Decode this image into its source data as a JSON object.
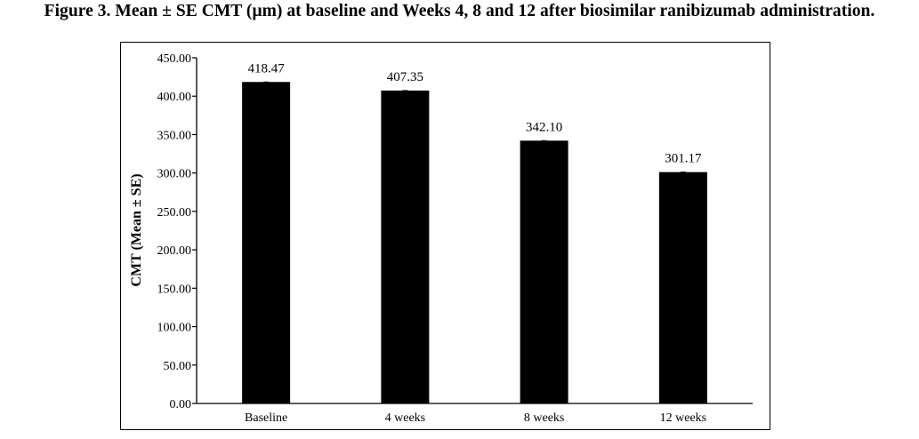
{
  "figure": {
    "title": "Figure 3. Mean ± SE CMT (μm) at baseline and Weeks 4, 8 and 12 after biosimilar ranibizumab administration."
  },
  "chart_data": {
    "type": "bar",
    "categories": [
      "Baseline",
      "4 weeks",
      "8 weeks",
      "12 weeks"
    ],
    "values": [
      418.47,
      407.35,
      342.1,
      301.17
    ],
    "data_labels": [
      "418.47",
      "407.35",
      "342.10",
      "301.17"
    ],
    "title": "Figure 3. Mean ± SE CMT (μm) at baseline and Weeks 4, 8 and 12 after biosimilar ranibizumab administration.",
    "xlabel": "",
    "ylabel": "CMT (Mean ± SE)",
    "ylim": [
      0,
      450
    ],
    "yticks": [
      0,
      50,
      100,
      150,
      200,
      250,
      300,
      350,
      400,
      450
    ],
    "ytick_labels": [
      "0.00",
      "50.00",
      "100.00",
      "150.00",
      "200.00",
      "250.00",
      "300.00",
      "350.00",
      "400.00",
      "450.00"
    ],
    "grid": false,
    "legend": "none",
    "bar_color": "#000000"
  }
}
